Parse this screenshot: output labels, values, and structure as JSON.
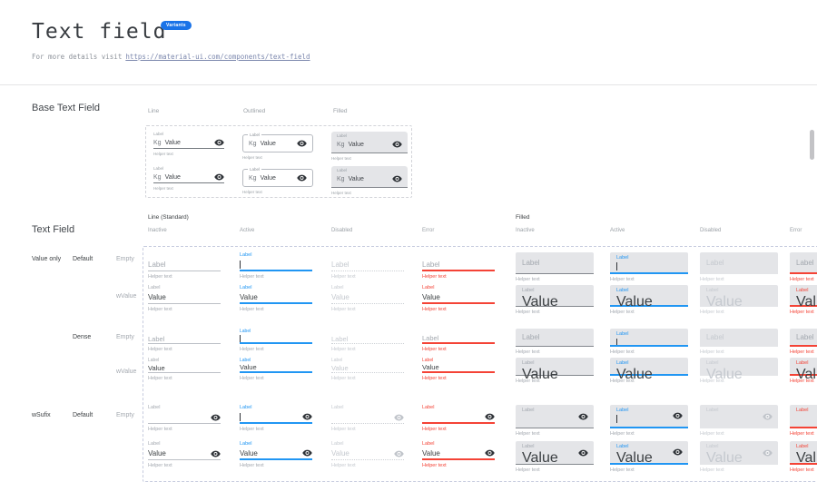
{
  "header": {
    "title": "Text field",
    "badge": "Variants",
    "subtitle_prefix": "For more details visit",
    "subtitle_link": "https://material-ui.com/components/text-field"
  },
  "strings": {
    "label": "Label",
    "value": "Value",
    "helper_text": "Helper text",
    "prefix": "Kg"
  },
  "colors": {
    "accent_blue": "#2196f3",
    "error_red": "#f44336",
    "badge_blue": "#1a73e8",
    "filled_bg": "#e4e5e8",
    "text_dark": "#3c4043",
    "label_gray": "#a3a8af",
    "disabled_gray": "#c5c9cf",
    "underline_gray": "#bcc0c6",
    "disabled_underline": "#ccd0d5",
    "base_underline": "#74797f"
  },
  "base_section": {
    "title": "Base Text Field",
    "columns": [
      "Line",
      "Outlined",
      "Filled"
    ]
  },
  "grid_section": {
    "title": "Text Field",
    "groups": [
      {
        "label": "Line (Standard)",
        "states": [
          "Inactive",
          "Active",
          "Disabled",
          "Error"
        ]
      },
      {
        "label": "Filled",
        "states": [
          "Inactive",
          "Active",
          "Disabled",
          "Error"
        ]
      }
    ],
    "side_labels": [
      "Value only",
      "Default",
      "Empty",
      "wValue",
      "Dense",
      "Empty",
      "wValue",
      "wSufix",
      "Default",
      "Empty"
    ],
    "rows": [
      {
        "size": "Default",
        "variant": "Empty"
      },
      {
        "size": "Default",
        "variant": "wValue"
      },
      {
        "size": "Dense",
        "variant": "Empty"
      },
      {
        "size": "Dense",
        "variant": "wValue"
      },
      {
        "size": "Default",
        "variant": "wSufix-Empty"
      },
      {
        "size": "Default",
        "variant": "wSufix-wValue"
      }
    ]
  }
}
